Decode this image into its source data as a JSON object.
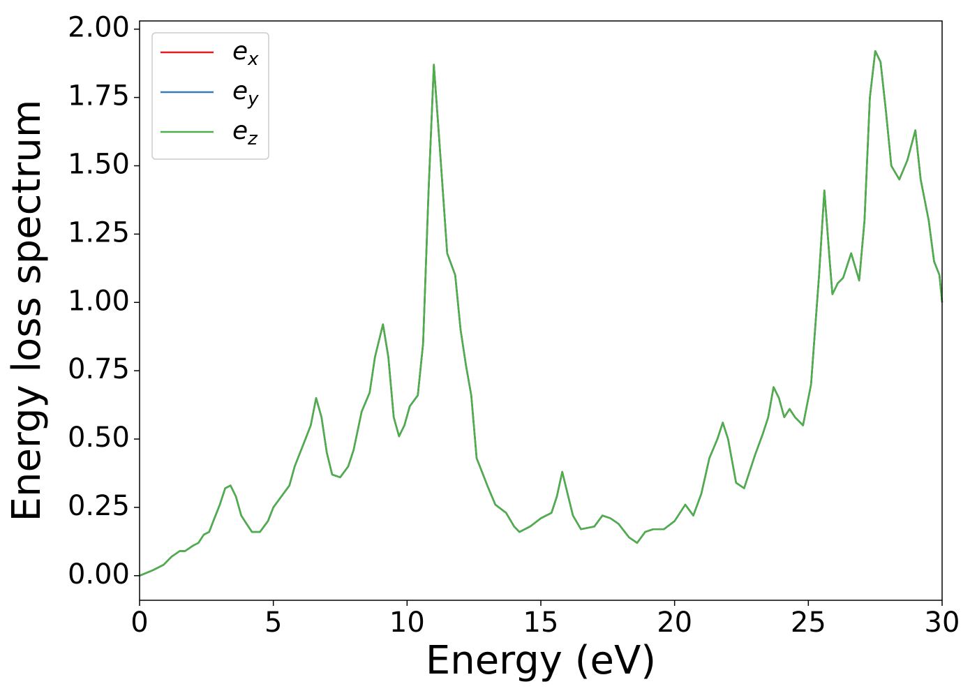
{
  "chart_data": {
    "type": "line",
    "xlabel": "Energy (eV)",
    "ylabel": "Energy loss spectrum",
    "x": [
      0,
      0.5,
      0.9,
      1.2,
      1.5,
      1.7,
      2.0,
      2.2,
      2.4,
      2.6,
      2.8,
      3.0,
      3.2,
      3.4,
      3.6,
      3.8,
      4.0,
      4.2,
      4.5,
      4.8,
      5.0,
      5.3,
      5.6,
      5.8,
      6.0,
      6.2,
      6.4,
      6.6,
      6.8,
      7.0,
      7.2,
      7.5,
      7.8,
      8.0,
      8.3,
      8.6,
      8.8,
      9.1,
      9.3,
      9.5,
      9.7,
      9.9,
      10.1,
      10.4,
      10.6,
      10.8,
      11.0,
      11.2,
      11.5,
      11.8,
      12.0,
      12.2,
      12.4,
      12.6,
      12.8,
      13.0,
      13.3,
      13.7,
      14.0,
      14.2,
      14.6,
      15.0,
      15.4,
      15.6,
      15.8,
      16.0,
      16.2,
      16.5,
      17.0,
      17.3,
      17.6,
      17.9,
      18.3,
      18.6,
      18.9,
      19.2,
      19.6,
      20.0,
      20.4,
      20.7,
      21.0,
      21.3,
      21.6,
      21.8,
      22.0,
      22.3,
      22.6,
      23.0,
      23.3,
      23.5,
      23.7,
      23.9,
      24.1,
      24.3,
      24.5,
      24.8,
      25.1,
      25.4,
      25.6,
      25.8,
      25.9,
      26.1,
      26.3,
      26.6,
      26.9,
      27.1,
      27.3,
      27.5,
      27.7,
      27.9,
      28.1,
      28.4,
      28.7,
      29.0,
      29.2,
      29.5,
      29.7,
      29.9,
      30.0
    ],
    "series": [
      {
        "name": "e_x",
        "color": "#e41a1c",
        "values": [
          0.0,
          0.02,
          0.04,
          0.07,
          0.09,
          0.09,
          0.11,
          0.12,
          0.15,
          0.16,
          0.21,
          0.26,
          0.32,
          0.33,
          0.29,
          0.22,
          0.19,
          0.16,
          0.16,
          0.2,
          0.25,
          0.29,
          0.33,
          0.4,
          0.45,
          0.5,
          0.55,
          0.65,
          0.58,
          0.45,
          0.37,
          0.36,
          0.4,
          0.46,
          0.6,
          0.67,
          0.8,
          0.92,
          0.8,
          0.58,
          0.51,
          0.55,
          0.62,
          0.66,
          0.85,
          1.4,
          1.87,
          1.6,
          1.18,
          1.1,
          0.9,
          0.77,
          0.66,
          0.43,
          0.38,
          0.33,
          0.26,
          0.23,
          0.18,
          0.16,
          0.18,
          0.21,
          0.23,
          0.29,
          0.38,
          0.3,
          0.22,
          0.17,
          0.18,
          0.22,
          0.21,
          0.19,
          0.14,
          0.12,
          0.16,
          0.17,
          0.17,
          0.2,
          0.26,
          0.22,
          0.3,
          0.43,
          0.5,
          0.56,
          0.5,
          0.34,
          0.32,
          0.44,
          0.52,
          0.58,
          0.69,
          0.65,
          0.58,
          0.61,
          0.58,
          0.55,
          0.7,
          1.1,
          1.41,
          1.15,
          1.03,
          1.07,
          1.09,
          1.18,
          1.08,
          1.3,
          1.75,
          1.92,
          1.88,
          1.7,
          1.5,
          1.45,
          1.52,
          1.63,
          1.45,
          1.3,
          1.15,
          1.1,
          1.0
        ]
      },
      {
        "name": "e_y",
        "color": "#377eb8",
        "values": [
          0.0,
          0.02,
          0.04,
          0.07,
          0.09,
          0.09,
          0.11,
          0.12,
          0.15,
          0.16,
          0.21,
          0.26,
          0.32,
          0.33,
          0.29,
          0.22,
          0.19,
          0.16,
          0.16,
          0.2,
          0.25,
          0.29,
          0.33,
          0.4,
          0.45,
          0.5,
          0.55,
          0.65,
          0.58,
          0.45,
          0.37,
          0.36,
          0.4,
          0.46,
          0.6,
          0.67,
          0.8,
          0.92,
          0.8,
          0.58,
          0.51,
          0.55,
          0.62,
          0.66,
          0.85,
          1.4,
          1.87,
          1.6,
          1.18,
          1.1,
          0.9,
          0.77,
          0.66,
          0.43,
          0.38,
          0.33,
          0.26,
          0.23,
          0.18,
          0.16,
          0.18,
          0.21,
          0.23,
          0.29,
          0.38,
          0.3,
          0.22,
          0.17,
          0.18,
          0.22,
          0.21,
          0.19,
          0.14,
          0.12,
          0.16,
          0.17,
          0.17,
          0.2,
          0.26,
          0.22,
          0.3,
          0.43,
          0.5,
          0.56,
          0.5,
          0.34,
          0.32,
          0.44,
          0.52,
          0.58,
          0.69,
          0.65,
          0.58,
          0.61,
          0.58,
          0.55,
          0.7,
          1.1,
          1.41,
          1.15,
          1.03,
          1.07,
          1.09,
          1.18,
          1.08,
          1.3,
          1.75,
          1.92,
          1.88,
          1.7,
          1.5,
          1.45,
          1.52,
          1.63,
          1.45,
          1.3,
          1.15,
          1.1,
          1.0
        ]
      },
      {
        "name": "e_z",
        "color": "#4daf4a",
        "values": [
          0.0,
          0.02,
          0.04,
          0.07,
          0.09,
          0.09,
          0.11,
          0.12,
          0.15,
          0.16,
          0.21,
          0.26,
          0.32,
          0.33,
          0.29,
          0.22,
          0.19,
          0.16,
          0.16,
          0.2,
          0.25,
          0.29,
          0.33,
          0.4,
          0.45,
          0.5,
          0.55,
          0.65,
          0.58,
          0.45,
          0.37,
          0.36,
          0.4,
          0.46,
          0.6,
          0.67,
          0.8,
          0.92,
          0.8,
          0.58,
          0.51,
          0.55,
          0.62,
          0.66,
          0.85,
          1.4,
          1.87,
          1.6,
          1.18,
          1.1,
          0.9,
          0.77,
          0.66,
          0.43,
          0.38,
          0.33,
          0.26,
          0.23,
          0.18,
          0.16,
          0.18,
          0.21,
          0.23,
          0.29,
          0.38,
          0.3,
          0.22,
          0.17,
          0.18,
          0.22,
          0.21,
          0.19,
          0.14,
          0.12,
          0.16,
          0.17,
          0.17,
          0.2,
          0.26,
          0.22,
          0.3,
          0.43,
          0.5,
          0.56,
          0.5,
          0.34,
          0.32,
          0.44,
          0.52,
          0.58,
          0.69,
          0.65,
          0.58,
          0.61,
          0.58,
          0.55,
          0.7,
          1.1,
          1.41,
          1.15,
          1.03,
          1.07,
          1.09,
          1.18,
          1.08,
          1.3,
          1.75,
          1.92,
          1.88,
          1.7,
          1.5,
          1.45,
          1.52,
          1.63,
          1.45,
          1.3,
          1.15,
          1.1,
          1.0
        ]
      }
    ],
    "xlim": [
      0,
      30
    ],
    "xticks": [
      0,
      5,
      10,
      15,
      20,
      25,
      30
    ],
    "ylim": [
      -0.09,
      2.03
    ],
    "yticks": [
      {
        "value": 0,
        "label": "0.00"
      },
      {
        "value": 0.25,
        "label": "0.25"
      },
      {
        "value": 0.5,
        "label": "0.50"
      },
      {
        "value": 0.75,
        "label": "0.75"
      },
      {
        "value": 1,
        "label": "1.00"
      },
      {
        "value": 1.25,
        "label": "1.25"
      },
      {
        "value": 1.5,
        "label": "1.50"
      },
      {
        "value": 1.75,
        "label": "1.75"
      },
      {
        "value": 2,
        "label": "2.00"
      }
    ],
    "grid": false,
    "legend": "upper left"
  }
}
